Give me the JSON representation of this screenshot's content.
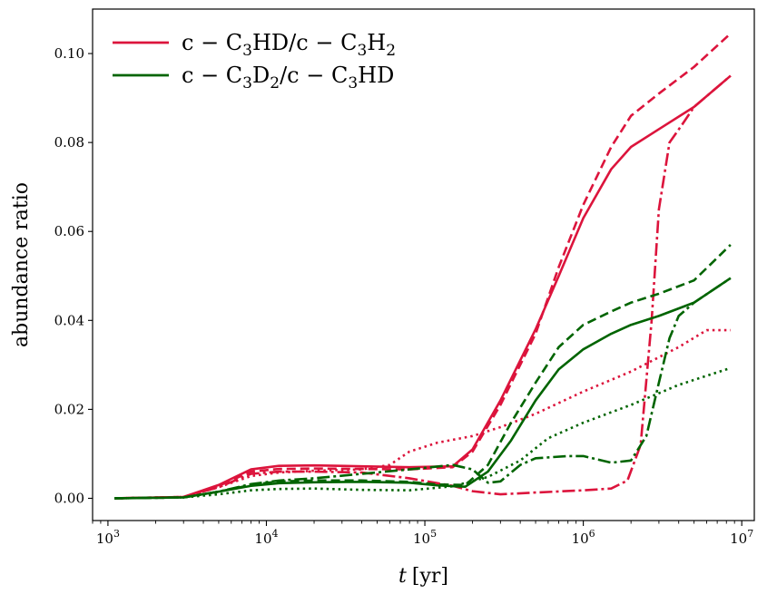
{
  "chart_data": {
    "type": "line",
    "xscale": "log",
    "xlim": [
      800,
      12000000
    ],
    "ylim": [
      -0.005,
      0.11
    ],
    "xlabel": {
      "var": "t",
      "unit": "[yr]"
    },
    "ylabel": "abundance ratio",
    "xticks": [
      {
        "value": 1000,
        "base": "10",
        "exp": "3"
      },
      {
        "value": 10000,
        "base": "10",
        "exp": "4"
      },
      {
        "value": 100000,
        "base": "10",
        "exp": "5"
      },
      {
        "value": 1000000,
        "base": "10",
        "exp": "6"
      },
      {
        "value": 10000000,
        "base": "10",
        "exp": "7"
      }
    ],
    "yticks": [
      {
        "value": 0.0,
        "label": "0.00"
      },
      {
        "value": 0.02,
        "label": "0.02"
      },
      {
        "value": 0.04,
        "label": "0.04"
      },
      {
        "value": 0.06,
        "label": "0.06"
      },
      {
        "value": 0.08,
        "label": "0.08"
      },
      {
        "value": 0.1,
        "label": "0.10"
      }
    ],
    "grid": false,
    "legend": {
      "placement": "top-left",
      "entries": [
        {
          "series": "crimson",
          "color": "#dc143c",
          "parts": [
            "c − C",
            "3",
            "HD/c − C",
            "3",
            "H",
            "2"
          ]
        },
        {
          "series": "green",
          "color": "#006400",
          "parts": [
            "c − C",
            "3",
            "D",
            "2",
            "/c − C",
            "3",
            "HD"
          ]
        }
      ]
    },
    "series": [
      {
        "group": "crimson",
        "color": "#dc143c",
        "dash": "solid",
        "points": [
          [
            1100,
            0
          ],
          [
            3000,
            0.0003
          ],
          [
            5000,
            0.003
          ],
          [
            8000,
            0.0065
          ],
          [
            12000,
            0.0073
          ],
          [
            20000,
            0.0074
          ],
          [
            40000,
            0.0072
          ],
          [
            80000,
            0.007
          ],
          [
            150000,
            0.0072
          ],
          [
            200000,
            0.011
          ],
          [
            300000,
            0.022
          ],
          [
            500000,
            0.038
          ],
          [
            700000,
            0.05
          ],
          [
            1000000,
            0.063
          ],
          [
            1500000,
            0.074
          ],
          [
            2000000,
            0.079
          ],
          [
            3000000,
            0.083
          ],
          [
            5000000,
            0.088
          ],
          [
            8500000,
            0.095
          ]
        ]
      },
      {
        "group": "crimson",
        "color": "#dc143c",
        "dash": "dash",
        "points": [
          [
            1100,
            0
          ],
          [
            3000,
            0.0003
          ],
          [
            5000,
            0.0028
          ],
          [
            8000,
            0.006
          ],
          [
            12000,
            0.0066
          ],
          [
            20000,
            0.0067
          ],
          [
            40000,
            0.0066
          ],
          [
            80000,
            0.0065
          ],
          [
            150000,
            0.007
          ],
          [
            200000,
            0.0105
          ],
          [
            300000,
            0.021
          ],
          [
            500000,
            0.037
          ],
          [
            700000,
            0.052
          ],
          [
            1000000,
            0.066
          ],
          [
            1500000,
            0.079
          ],
          [
            2000000,
            0.086
          ],
          [
            3000000,
            0.091
          ],
          [
            5000000,
            0.097
          ],
          [
            8500000,
            0.1045
          ]
        ]
      },
      {
        "group": "crimson",
        "color": "#dc143c",
        "dash": "dashdot",
        "points": [
          [
            1100,
            0
          ],
          [
            3000,
            0.0003
          ],
          [
            5000,
            0.0025
          ],
          [
            8000,
            0.0055
          ],
          [
            12000,
            0.006
          ],
          [
            20000,
            0.006
          ],
          [
            40000,
            0.0058
          ],
          [
            80000,
            0.0045
          ],
          [
            150000,
            0.0028
          ],
          [
            200000,
            0.0016
          ],
          [
            300000,
            0.0009
          ],
          [
            500000,
            0.0013
          ],
          [
            1000000,
            0.0018
          ],
          [
            1500000,
            0.0022
          ],
          [
            1900000,
            0.004
          ],
          [
            2300000,
            0.012
          ],
          [
            2700000,
            0.04
          ],
          [
            3000000,
            0.065
          ],
          [
            3500000,
            0.08
          ],
          [
            4200000,
            0.084
          ],
          [
            5000000,
            0.088
          ],
          [
            8500000,
            0.095
          ]
        ]
      },
      {
        "group": "crimson",
        "color": "#dc143c",
        "dash": "dot",
        "points": [
          [
            1100,
            0
          ],
          [
            3000,
            0.0003
          ],
          [
            5000,
            0.0025
          ],
          [
            8000,
            0.005
          ],
          [
            12000,
            0.0058
          ],
          [
            20000,
            0.0062
          ],
          [
            40000,
            0.0065
          ],
          [
            60000,
            0.0075
          ],
          [
            80000,
            0.0105
          ],
          [
            120000,
            0.0125
          ],
          [
            200000,
            0.014
          ],
          [
            300000,
            0.016
          ],
          [
            500000,
            0.019
          ],
          [
            1000000,
            0.024
          ],
          [
            2000000,
            0.0285
          ],
          [
            4000000,
            0.034
          ],
          [
            6000000,
            0.0378
          ],
          [
            8500000,
            0.0378
          ]
        ]
      },
      {
        "group": "green",
        "color": "#006400",
        "dash": "solid",
        "points": [
          [
            1100,
            0
          ],
          [
            3000,
            0.0002
          ],
          [
            5000,
            0.0015
          ],
          [
            8000,
            0.0028
          ],
          [
            12000,
            0.0034
          ],
          [
            20000,
            0.0036
          ],
          [
            40000,
            0.0037
          ],
          [
            80000,
            0.0035
          ],
          [
            120000,
            0.0029
          ],
          [
            180000,
            0.0026
          ],
          [
            250000,
            0.006
          ],
          [
            350000,
            0.013
          ],
          [
            500000,
            0.022
          ],
          [
            700000,
            0.029
          ],
          [
            1000000,
            0.0335
          ],
          [
            1500000,
            0.037
          ],
          [
            2000000,
            0.039
          ],
          [
            3000000,
            0.041
          ],
          [
            5000000,
            0.044
          ],
          [
            8500000,
            0.0495
          ]
        ]
      },
      {
        "group": "green",
        "color": "#006400",
        "dash": "dash",
        "points": [
          [
            1100,
            0
          ],
          [
            3000,
            0.0002
          ],
          [
            5000,
            0.0015
          ],
          [
            8000,
            0.003
          ],
          [
            12000,
            0.0038
          ],
          [
            20000,
            0.004
          ],
          [
            40000,
            0.004
          ],
          [
            80000,
            0.0037
          ],
          [
            120000,
            0.0031
          ],
          [
            180000,
            0.003
          ],
          [
            250000,
            0.0075
          ],
          [
            350000,
            0.017
          ],
          [
            500000,
            0.026
          ],
          [
            700000,
            0.034
          ],
          [
            1000000,
            0.039
          ],
          [
            1500000,
            0.042
          ],
          [
            2000000,
            0.044
          ],
          [
            3000000,
            0.046
          ],
          [
            5000000,
            0.049
          ],
          [
            8500000,
            0.057
          ]
        ]
      },
      {
        "group": "green",
        "color": "#006400",
        "dash": "dashdot",
        "points": [
          [
            1100,
            0
          ],
          [
            3000,
            0.0002
          ],
          [
            5000,
            0.0015
          ],
          [
            8000,
            0.0032
          ],
          [
            12000,
            0.004
          ],
          [
            20000,
            0.0045
          ],
          [
            40000,
            0.0055
          ],
          [
            80000,
            0.0065
          ],
          [
            150000,
            0.0075
          ],
          [
            200000,
            0.0065
          ],
          [
            250000,
            0.0035
          ],
          [
            300000,
            0.0038
          ],
          [
            400000,
            0.0075
          ],
          [
            500000,
            0.009
          ],
          [
            800000,
            0.0095
          ],
          [
            1000000,
            0.0095
          ],
          [
            1500000,
            0.008
          ],
          [
            2000000,
            0.0085
          ],
          [
            2500000,
            0.014
          ],
          [
            3000000,
            0.026
          ],
          [
            3500000,
            0.036
          ],
          [
            4000000,
            0.041
          ],
          [
            5000000,
            0.044
          ],
          [
            8500000,
            0.0495
          ]
        ]
      },
      {
        "group": "green",
        "color": "#006400",
        "dash": "dot",
        "points": [
          [
            1100,
            0
          ],
          [
            3000,
            0.0002
          ],
          [
            5000,
            0.0009
          ],
          [
            8000,
            0.0018
          ],
          [
            12000,
            0.0021
          ],
          [
            20000,
            0.0022
          ],
          [
            40000,
            0.0019
          ],
          [
            80000,
            0.0018
          ],
          [
            150000,
            0.0027
          ],
          [
            250000,
            0.0048
          ],
          [
            400000,
            0.0085
          ],
          [
            600000,
            0.0135
          ],
          [
            1000000,
            0.017
          ],
          [
            2000000,
            0.021
          ],
          [
            4000000,
            0.0255
          ],
          [
            8500000,
            0.0293
          ]
        ]
      }
    ]
  }
}
